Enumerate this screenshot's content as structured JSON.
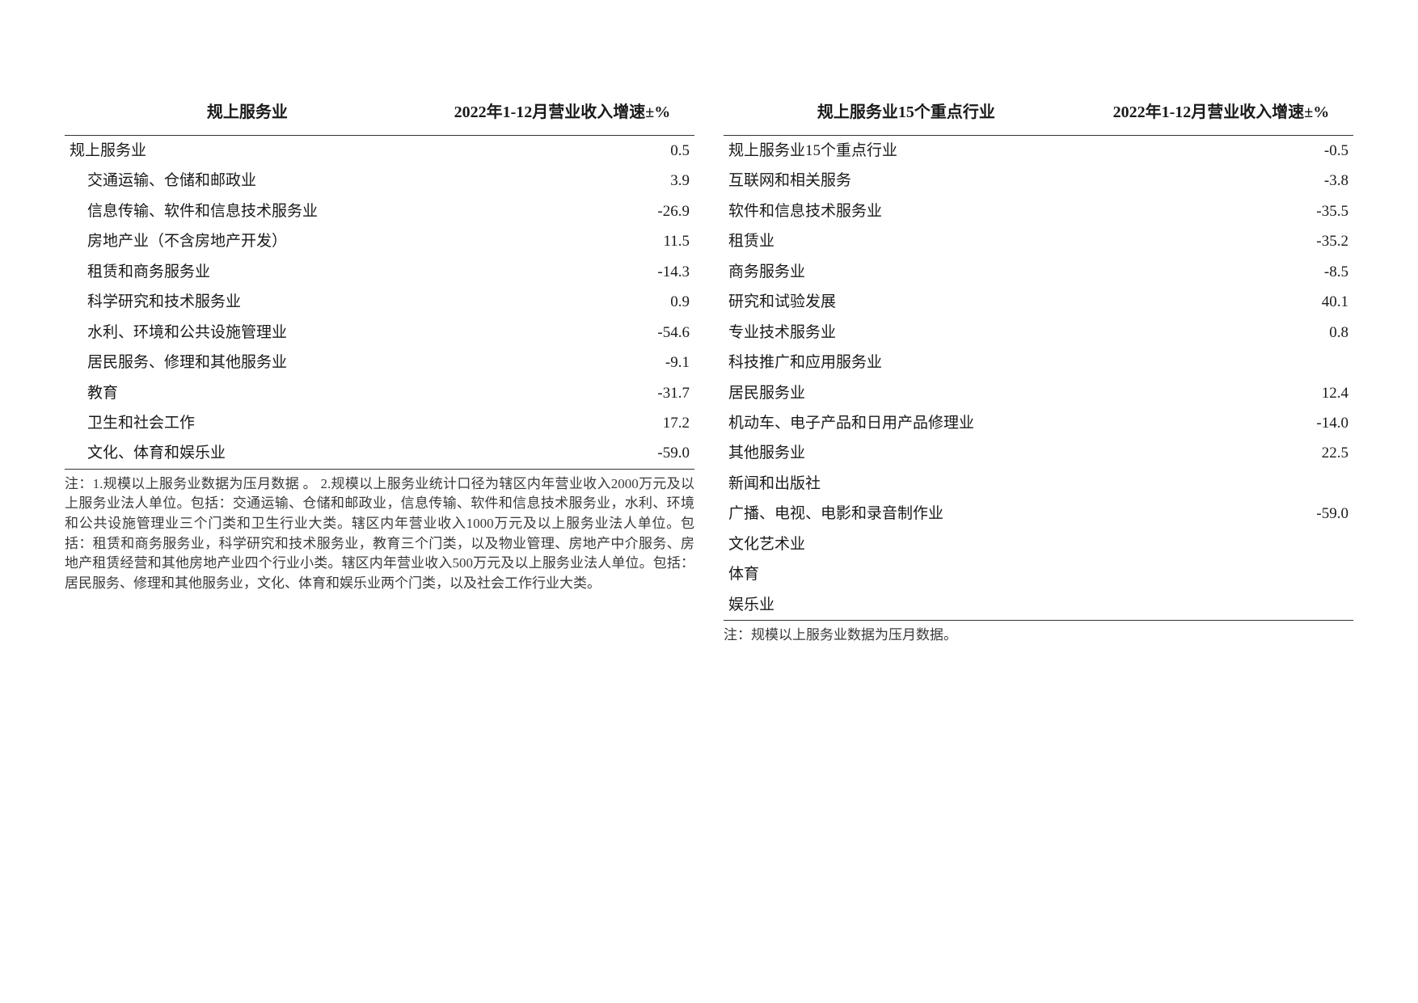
{
  "left": {
    "header_name": "规上服务业",
    "header_value": "2022年1-12月营业收入增速±%",
    "rows": [
      {
        "name": "规上服务业",
        "value": "0.5",
        "indent": false
      },
      {
        "name": "交通运输、仓储和邮政业",
        "value": "3.9",
        "indent": true
      },
      {
        "name": "信息传输、软件和信息技术服务业",
        "value": "-26.9",
        "indent": true
      },
      {
        "name": "房地产业（不含房地产开发）",
        "value": "11.5",
        "indent": true
      },
      {
        "name": "租赁和商务服务业",
        "value": "-14.3",
        "indent": true
      },
      {
        "name": "科学研究和技术服务业",
        "value": "0.9",
        "indent": true
      },
      {
        "name": "水利、环境和公共设施管理业",
        "value": "-54.6",
        "indent": true
      },
      {
        "name": "居民服务、修理和其他服务业",
        "value": "-9.1",
        "indent": true
      },
      {
        "name": "教育",
        "value": "-31.7",
        "indent": true
      },
      {
        "name": "卫生和社会工作",
        "value": "17.2",
        "indent": true
      },
      {
        "name": "文化、体育和娱乐业",
        "value": "-59.0",
        "indent": true
      }
    ],
    "note": "注：1.规模以上服务业数据为压月数据 。\n 2.规模以上服务业统计口径为辖区内年营业收入2000万元及以上服务业法人单位。包括：交通运输、仓储和邮政业，信息传输、软件和信息技术服务业，水利、环境和公共设施管理业三个门类和卫生行业大类。辖区内年营业收入1000万元及以上服务业法人单位。包括：租赁和商务服务业，科学研究和技术服务业，教育三个门类，以及物业管理、房地产中介服务、房地产租赁经营和其他房地产业四个行业小类。辖区内年营业收入500万元及以上服务业法人单位。包括：居民服务、修理和其他服务业，文化、体育和娱乐业两个门类，以及社会工作行业大类。"
  },
  "right": {
    "header_name": "规上服务业15个重点行业",
    "header_value": "2022年1-12月营业收入增速±%",
    "rows": [
      {
        "name": "规上服务业15个重点行业",
        "value": "-0.5"
      },
      {
        "name": "互联网和相关服务",
        "value": "-3.8"
      },
      {
        "name": "软件和信息技术服务业",
        "value": "-35.5"
      },
      {
        "name": "租赁业",
        "value": "-35.2"
      },
      {
        "name": "商务服务业",
        "value": "-8.5"
      },
      {
        "name": "研究和试验发展",
        "value": "40.1"
      },
      {
        "name": "专业技术服务业",
        "value": "0.8"
      },
      {
        "name": "科技推广和应用服务业",
        "value": ""
      },
      {
        "name": "居民服务业",
        "value": "12.4"
      },
      {
        "name": "机动车、电子产品和日用产品修理业",
        "value": "-14.0"
      },
      {
        "name": "其他服务业",
        "value": "22.5"
      },
      {
        "name": "新闻和出版社",
        "value": ""
      },
      {
        "name": "广播、电视、电影和录音制作业",
        "value": "-59.0"
      },
      {
        "name": "文化艺术业",
        "value": ""
      },
      {
        "name": "体育",
        "value": ""
      },
      {
        "name": "娱乐业",
        "value": ""
      }
    ],
    "note": "注：规模以上服务业数据为压月数据。"
  },
  "style": {
    "text_color": "#1a1a1a",
    "note_color": "#3a3a3a",
    "border_color": "#333333",
    "background_color": "#ffffff",
    "header_fontsize_pt": 15,
    "body_fontsize_pt": 14,
    "note_fontsize_pt": 13,
    "font_family": "SimSun"
  }
}
